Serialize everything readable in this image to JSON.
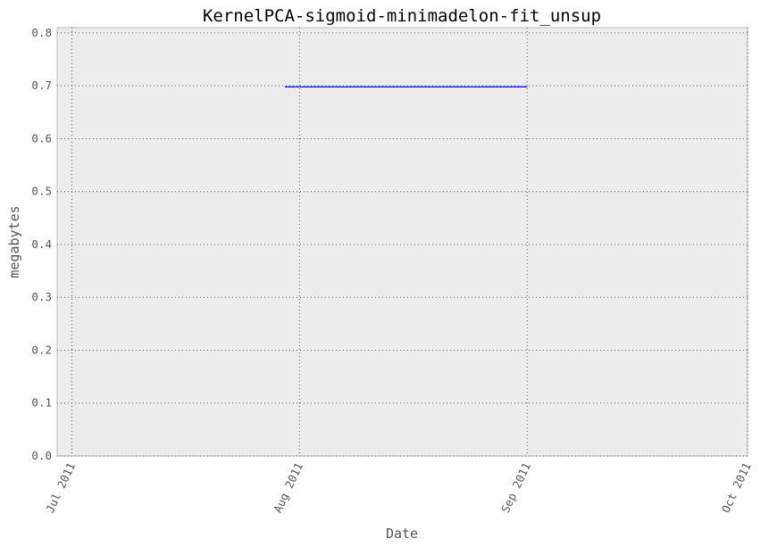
{
  "chart_data": {
    "type": "line",
    "title": "KernelPCA-sigmoid-minimadelon-fit_unsup",
    "xlabel": "Date",
    "ylabel": "megabytes",
    "x_ticks": [
      "2011-07-01",
      "2011-08-01",
      "2011-09-01",
      "2011-10-01"
    ],
    "x_tick_labels": [
      "Jul 2011",
      "Aug 2011",
      "Sep 2011",
      "Oct 2011"
    ],
    "xlim": [
      "2011-06-29",
      "2011-10-01"
    ],
    "ylim": [
      0,
      0.81
    ],
    "y_ticks": [
      0.0,
      0.1,
      0.2,
      0.3,
      0.4,
      0.5,
      0.6,
      0.7,
      0.8
    ],
    "y_tick_labels": [
      "0.0",
      "0.1",
      "0.2",
      "0.3",
      "0.4",
      "0.5",
      "0.6",
      "0.7",
      "0.8"
    ],
    "grid": true,
    "series": [
      {
        "color": "#0000ff",
        "x": [
          "2011-07-30",
          "2011-09-01"
        ],
        "y": [
          0.698,
          0.698
        ]
      }
    ],
    "colors": {
      "plot_background": "#ececec",
      "frame": "#bcbcbc",
      "grid": "#555555"
    }
  }
}
